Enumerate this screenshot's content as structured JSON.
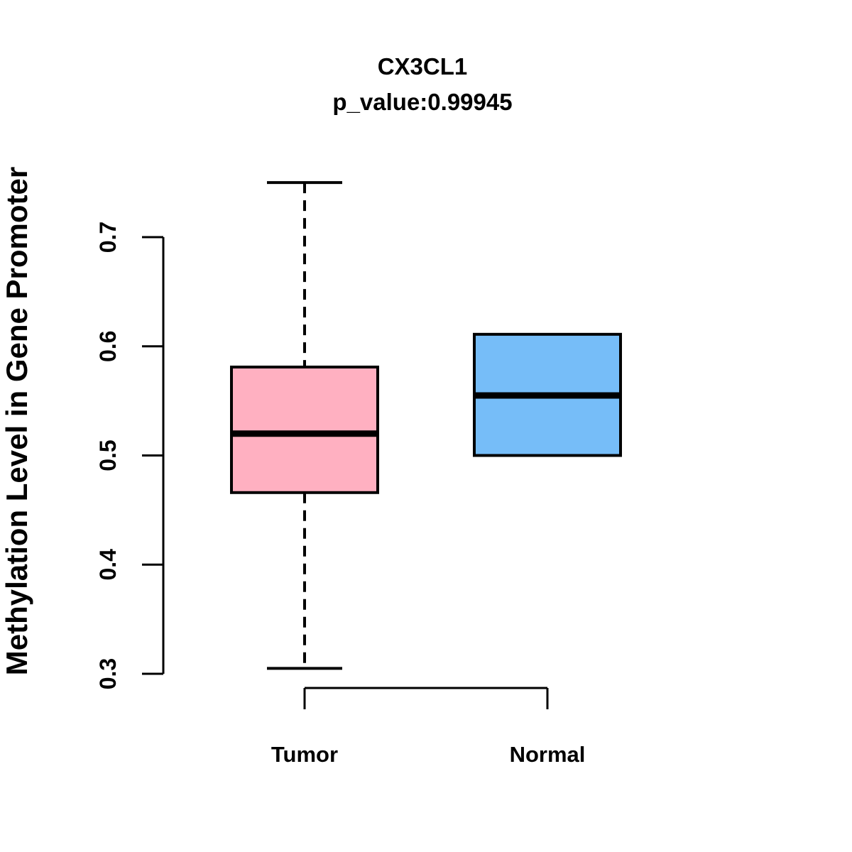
{
  "chart_data": {
    "type": "boxplot",
    "title": "CX3CL1",
    "subtitle": "p_value:0.99945",
    "ylabel": "Methylation Level in Gene Promoter",
    "xlabel": "",
    "categories": [
      "Tumor",
      "Normal"
    ],
    "yticks": [
      "0.3",
      "0.4",
      "0.5",
      "0.6",
      "0.7"
    ],
    "ylim": [
      0.3,
      0.7
    ],
    "grid": false,
    "legend": "none",
    "colors": {
      "box_border": "#000000",
      "median": "#000000",
      "axis": "#000000"
    },
    "groups": [
      {
        "label": "Tumor",
        "fill": "#FFB0C1",
        "whisker_low": 0.305,
        "q1": 0.466,
        "median": 0.52,
        "q3": 0.581,
        "whisker_high": 0.75
      },
      {
        "label": "Normal",
        "fill": "#76BDF8",
        "whisker_low": 0.5,
        "q1": 0.5,
        "median": 0.555,
        "q3": 0.611,
        "whisker_high": 0.611
      }
    ]
  }
}
